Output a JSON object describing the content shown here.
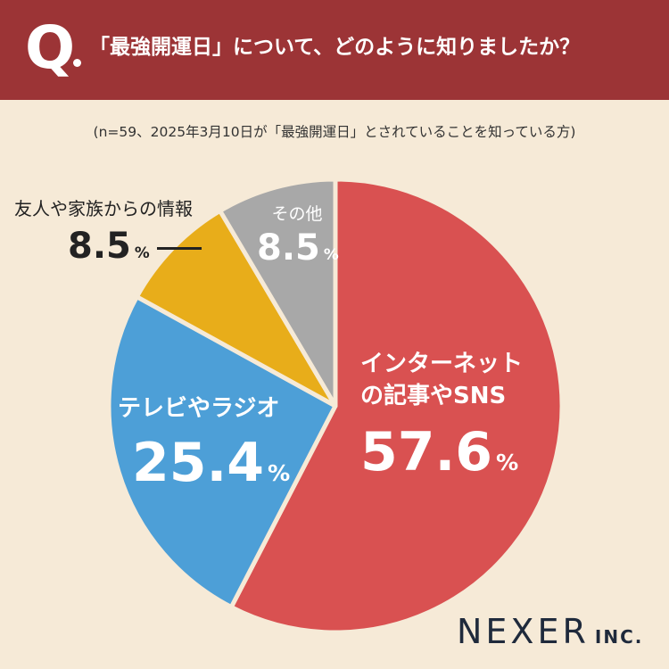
{
  "header": {
    "q_mark": "Q",
    "question": "「最強開運日」について、どのように知りましたか？"
  },
  "note": "(n=59、2025年3月10日が「最強開運日」とされていることを知っている方)",
  "colors": {
    "header_bg": "#9c3436",
    "background": "#f6ead7",
    "internet": "#d95151",
    "tv_radio": "#4d9fd7",
    "friends": "#e8ad1a",
    "other": "#a8a8a8"
  },
  "chart_data": {
    "type": "pie",
    "categories": [
      "インターネットの記事やSNS",
      "テレビやラジオ",
      "友人や家族からの情報",
      "その他"
    ],
    "values": [
      57.6,
      25.4,
      8.5,
      8.5
    ],
    "unit": "%",
    "start": "12 o'clock",
    "direction": "clockwise",
    "labels": [
      {
        "line1": "インターネット",
        "line2": "の記事やSNS",
        "pct": "57.6"
      },
      {
        "line1": "テレビやラジオ",
        "pct": "25.4"
      },
      {
        "line1": "友人や家族からの情報",
        "pct": "8.5"
      },
      {
        "line1": "その他",
        "pct": "8.5"
      }
    ],
    "pct_symbol": "%"
  },
  "brand": {
    "name": "NEXER",
    "suffix": "INC."
  }
}
